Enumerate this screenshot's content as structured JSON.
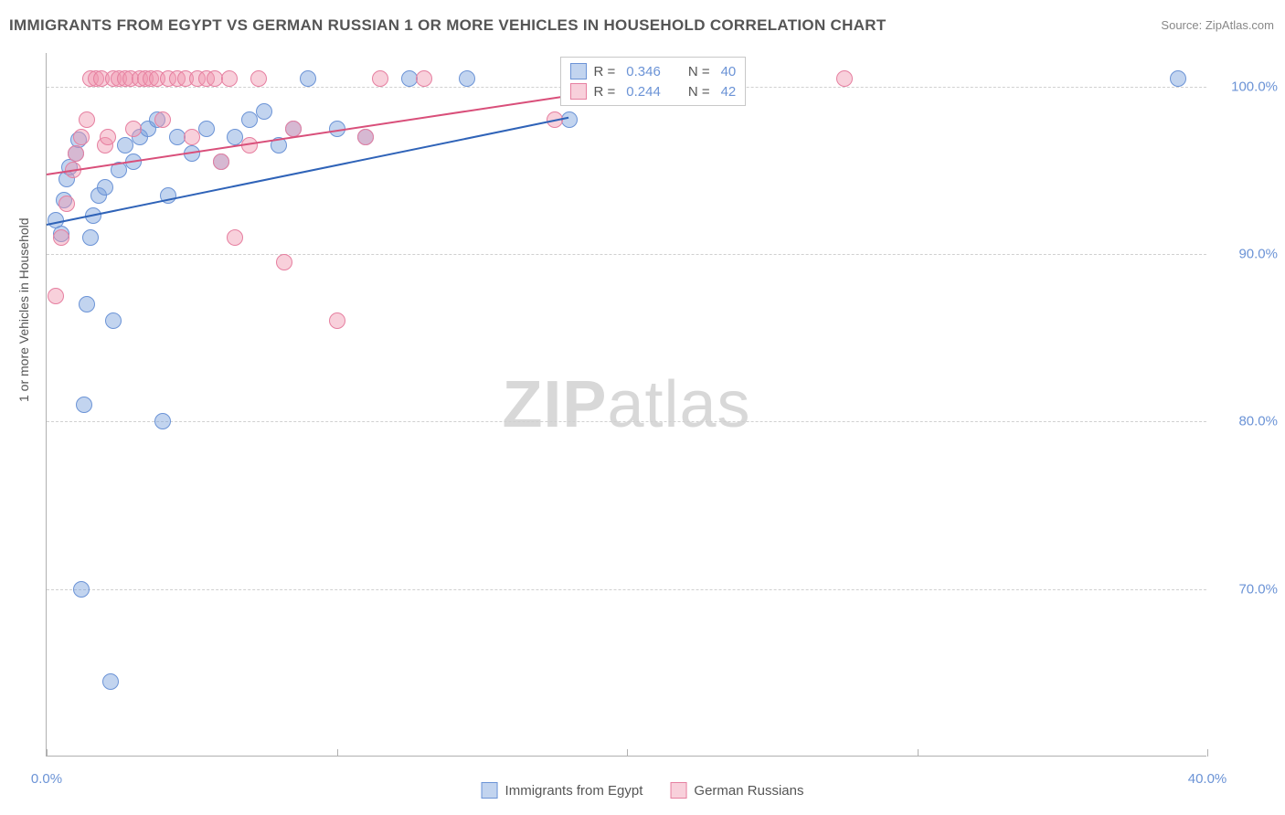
{
  "title": "IMMIGRANTS FROM EGYPT VS GERMAN RUSSIAN 1 OR MORE VEHICLES IN HOUSEHOLD CORRELATION CHART",
  "source_label": "Source:",
  "source_name": "ZipAtlas.com",
  "ylabel": "1 or more Vehicles in Household",
  "watermark_a": "ZIP",
  "watermark_b": "atlas",
  "axes": {
    "xlim": [
      0,
      40
    ],
    "ylim": [
      60,
      102
    ],
    "xticks": [
      0,
      10,
      20,
      30,
      40
    ],
    "xtick_labels": [
      "0.0%",
      "",
      "",
      "",
      "40.0%"
    ],
    "yticks": [
      70,
      80,
      90,
      100
    ],
    "ytick_labels": [
      "70.0%",
      "80.0%",
      "90.0%",
      "100.0%"
    ],
    "grid_color": "#d0d0d0",
    "axis_color": "#b0b0b0"
  },
  "series": [
    {
      "name": "Immigrants from Egypt",
      "color_fill": "rgba(120,160,220,0.45)",
      "color_stroke": "#6b93d6",
      "marker_r": 9,
      "R": "0.346",
      "N": "40",
      "trend": {
        "x1": 0,
        "y1": 91.8,
        "x2": 18,
        "y2": 98.2,
        "color": "#2f63b8"
      },
      "points": [
        [
          0.3,
          92.0
        ],
        [
          0.5,
          91.2
        ],
        [
          0.6,
          93.2
        ],
        [
          0.7,
          94.5
        ],
        [
          0.8,
          95.2
        ],
        [
          1.0,
          96.0
        ],
        [
          1.1,
          96.8
        ],
        [
          1.2,
          70.0
        ],
        [
          1.3,
          81.0
        ],
        [
          1.4,
          87.0
        ],
        [
          1.5,
          91.0
        ],
        [
          1.6,
          92.3
        ],
        [
          1.8,
          93.5
        ],
        [
          2.0,
          94.0
        ],
        [
          2.2,
          64.5
        ],
        [
          2.3,
          86.0
        ],
        [
          2.5,
          95.0
        ],
        [
          2.7,
          96.5
        ],
        [
          3.0,
          95.5
        ],
        [
          3.2,
          97.0
        ],
        [
          3.5,
          97.5
        ],
        [
          3.8,
          98.0
        ],
        [
          4.0,
          80.0
        ],
        [
          4.2,
          93.5
        ],
        [
          4.5,
          97.0
        ],
        [
          5.0,
          96.0
        ],
        [
          5.5,
          97.5
        ],
        [
          6.0,
          95.5
        ],
        [
          6.5,
          97.0
        ],
        [
          7.0,
          98.0
        ],
        [
          7.5,
          98.5
        ],
        [
          8.0,
          96.5
        ],
        [
          8.5,
          97.5
        ],
        [
          9.0,
          100.5
        ],
        [
          10.0,
          97.5
        ],
        [
          11.0,
          97.0
        ],
        [
          12.5,
          100.5
        ],
        [
          14.5,
          100.5
        ],
        [
          18.0,
          98.0
        ],
        [
          39.0,
          100.5
        ]
      ]
    },
    {
      "name": "German Russians",
      "color_fill": "rgba(240,150,175,0.45)",
      "color_stroke": "#e67fa0",
      "marker_r": 9,
      "R": "0.244",
      "N": "42",
      "trend": {
        "x1": 0,
        "y1": 94.8,
        "x2": 18,
        "y2": 99.5,
        "color": "#d94f7a"
      },
      "points": [
        [
          0.3,
          87.5
        ],
        [
          0.5,
          91.0
        ],
        [
          0.7,
          93.0
        ],
        [
          0.9,
          95.0
        ],
        [
          1.0,
          96.0
        ],
        [
          1.2,
          97.0
        ],
        [
          1.4,
          98.0
        ],
        [
          1.5,
          100.5
        ],
        [
          1.7,
          100.5
        ],
        [
          1.9,
          100.5
        ],
        [
          2.0,
          96.5
        ],
        [
          2.1,
          97.0
        ],
        [
          2.3,
          100.5
        ],
        [
          2.5,
          100.5
        ],
        [
          2.7,
          100.5
        ],
        [
          2.9,
          100.5
        ],
        [
          3.0,
          97.5
        ],
        [
          3.2,
          100.5
        ],
        [
          3.4,
          100.5
        ],
        [
          3.6,
          100.5
        ],
        [
          3.8,
          100.5
        ],
        [
          4.0,
          98.0
        ],
        [
          4.2,
          100.5
        ],
        [
          4.5,
          100.5
        ],
        [
          4.8,
          100.5
        ],
        [
          5.0,
          97.0
        ],
        [
          5.2,
          100.5
        ],
        [
          5.5,
          100.5
        ],
        [
          5.8,
          100.5
        ],
        [
          6.0,
          95.5
        ],
        [
          6.3,
          100.5
        ],
        [
          6.5,
          91.0
        ],
        [
          7.0,
          96.5
        ],
        [
          7.3,
          100.5
        ],
        [
          8.2,
          89.5
        ],
        [
          8.5,
          97.5
        ],
        [
          10.0,
          86.0
        ],
        [
          11.0,
          97.0
        ],
        [
          11.5,
          100.5
        ],
        [
          13.0,
          100.5
        ],
        [
          17.5,
          98.0
        ],
        [
          27.5,
          100.5
        ]
      ]
    }
  ],
  "stat_box": {
    "rows": [
      {
        "swatch_fill": "rgba(120,160,220,0.45)",
        "swatch_stroke": "#6b93d6",
        "R_label": "R =",
        "R": "0.346",
        "N_label": "N =",
        "N": "40"
      },
      {
        "swatch_fill": "rgba(240,150,175,0.45)",
        "swatch_stroke": "#e67fa0",
        "R_label": "R =",
        "R": "0.244",
        "N_label": "N =",
        "N": "42"
      }
    ]
  },
  "bottom_legend": [
    {
      "swatch_fill": "rgba(120,160,220,0.45)",
      "swatch_stroke": "#6b93d6",
      "label": "Immigrants from Egypt"
    },
    {
      "swatch_fill": "rgba(240,150,175,0.45)",
      "swatch_stroke": "#e67fa0",
      "label": "German Russians"
    }
  ],
  "colors": {
    "title": "#555555",
    "tick_label": "#6b93d6",
    "watermark": "#d8d8d8",
    "background": "#ffffff"
  }
}
